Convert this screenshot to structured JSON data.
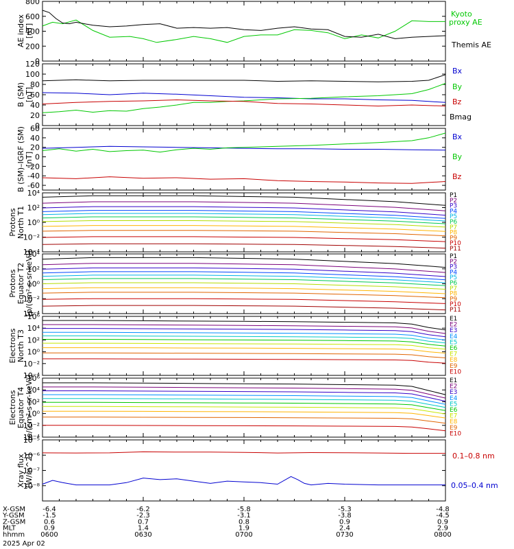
{
  "colors": {
    "black": "#000000",
    "green": "#00c800",
    "blue": "#0000d0",
    "red": "#c80000"
  },
  "p_colors": [
    "#000000",
    "#7a007a",
    "#3200c8",
    "#0048ff",
    "#00b4e6",
    "#00c850",
    "#b4dc00",
    "#ffb400",
    "#e06400",
    "#c80000",
    "#a00000"
  ],
  "e_colors": [
    "#000000",
    "#7a007a",
    "#3200c8",
    "#0090ff",
    "#00c8c8",
    "#00c800",
    "#c8e600",
    "#ffb400",
    "#e06400",
    "#c80000"
  ],
  "chart_data": [
    {
      "type": "line",
      "ylabel": "AE index [nT]",
      "ylim": [
        0,
        800
      ],
      "yticks": [
        "800",
        "600",
        "400",
        "200",
        "0"
      ],
      "grid": false,
      "legend_position": "right",
      "series": [
        {
          "name": "Kyoto proxy AE",
          "color": "green",
          "x_minutes": [
            0,
            3,
            6,
            10,
            15,
            20,
            26,
            30,
            34,
            40,
            45,
            50,
            55,
            60,
            65,
            70,
            75,
            80,
            85,
            90,
            95,
            100,
            105,
            110,
            115,
            120
          ],
          "values": [
            470,
            520,
            500,
            550,
            410,
            320,
            330,
            300,
            250,
            290,
            330,
            300,
            250,
            330,
            350,
            350,
            420,
            410,
            380,
            300,
            350,
            310,
            400,
            540,
            530,
            530
          ]
        },
        {
          "name": "Themis AE",
          "color": "black",
          "x_minutes": [
            0,
            2,
            4,
            6,
            8,
            10,
            15,
            20,
            25,
            30,
            35,
            40,
            45,
            50,
            55,
            60,
            65,
            70,
            75,
            80,
            85,
            90,
            95,
            100,
            105,
            110,
            115,
            120
          ],
          "values": [
            680,
            650,
            570,
            510,
            500,
            520,
            480,
            460,
            470,
            490,
            500,
            440,
            450,
            440,
            450,
            420,
            410,
            440,
            460,
            430,
            420,
            330,
            320,
            360,
            300,
            320,
            330,
            340
          ]
        }
      ]
    },
    {
      "type": "line",
      "ylabel": "B (SM) [nT]",
      "ylim": [
        0,
        120
      ],
      "yticks": [
        "120",
        "100",
        "80",
        "60",
        "40",
        "20",
        "0"
      ],
      "series": [
        {
          "name": "Bx",
          "color": "blue",
          "x_minutes": [
            0,
            10,
            20,
            30,
            40,
            50,
            60,
            70,
            80,
            90,
            100,
            110,
            115,
            120
          ],
          "values": [
            64,
            63,
            60,
            63,
            61,
            58,
            55,
            54,
            52,
            52,
            50,
            49,
            47,
            45
          ]
        },
        {
          "name": "By",
          "color": "green",
          "x_minutes": [
            0,
            5,
            10,
            15,
            20,
            25,
            30,
            35,
            40,
            45,
            50,
            55,
            60,
            70,
            80,
            90,
            100,
            110,
            115,
            120
          ],
          "values": [
            25,
            27,
            30,
            26,
            29,
            28,
            33,
            36,
            40,
            45,
            45,
            47,
            48,
            52,
            53,
            56,
            58,
            62,
            70,
            82
          ]
        },
        {
          "name": "Bz",
          "color": "red",
          "x_minutes": [
            0,
            10,
            20,
            30,
            40,
            50,
            60,
            70,
            80,
            90,
            100,
            110,
            120
          ],
          "values": [
            42,
            45,
            47,
            48,
            50,
            48,
            47,
            43,
            42,
            40,
            38,
            40,
            38
          ]
        },
        {
          "name": "Bmag",
          "color": "black",
          "x_minutes": [
            0,
            10,
            20,
            30,
            40,
            50,
            60,
            70,
            80,
            90,
            100,
            110,
            115,
            120
          ],
          "values": [
            87,
            89,
            87,
            88,
            88,
            88,
            88,
            86,
            87,
            86,
            85,
            86,
            88,
            99
          ]
        }
      ]
    },
    {
      "type": "line",
      "ylabel": "B (SM)-IGRF (SM) [nT]",
      "ylim": [
        -70,
        60
      ],
      "yticks": [
        "60",
        "40",
        "20",
        "0",
        "-20",
        "-40",
        "-60"
      ],
      "series": [
        {
          "name": "Bx",
          "color": "blue",
          "x_minutes": [
            0,
            10,
            20,
            30,
            40,
            50,
            60,
            70,
            80,
            90,
            100,
            110,
            120
          ],
          "values": [
            18,
            20,
            22,
            21,
            20,
            19,
            18,
            17,
            17,
            16,
            16,
            15,
            14
          ]
        },
        {
          "name": "By",
          "color": "green",
          "x_minutes": [
            0,
            5,
            10,
            15,
            20,
            25,
            30,
            35,
            40,
            45,
            50,
            55,
            60,
            70,
            80,
            90,
            100,
            110,
            115,
            120
          ],
          "values": [
            13,
            17,
            12,
            16,
            11,
            13,
            14,
            10,
            15,
            18,
            16,
            19,
            20,
            22,
            24,
            27,
            30,
            34,
            40,
            50
          ]
        },
        {
          "name": "Bz",
          "color": "red",
          "x_minutes": [
            0,
            10,
            20,
            30,
            40,
            50,
            60,
            70,
            80,
            90,
            100,
            110,
            120
          ],
          "values": [
            -44,
            -46,
            -42,
            -45,
            -44,
            -47,
            -46,
            -50,
            -52,
            -53,
            -55,
            -56,
            -52
          ]
        }
      ]
    },
    {
      "type": "line",
      "ylabel": "Protons North T1",
      "yscale": "log",
      "ylim": [
        0.0001,
        10000
      ],
      "yticks": [
        "10⁴",
        "10²",
        "10⁰",
        "10⁻²",
        "10⁻⁴"
      ],
      "legend": [
        "P1",
        "P2",
        "P3",
        "P4",
        "P5",
        "P6",
        "P7",
        "P8",
        "P9",
        "P10",
        "P11"
      ],
      "channel_start_log": [
        3.4,
        2.6,
        1.95,
        1.45,
        1.05,
        0.6,
        0.1,
        -0.55,
        -1.2,
        -2.05,
        -3.0
      ],
      "x_minutes": [
        0,
        15,
        30,
        45,
        60,
        75,
        90,
        105,
        120
      ],
      "channel_delta_log": [
        0,
        0.2,
        0.2,
        0.2,
        0.1,
        0,
        -0.3,
        -0.6,
        -1.1
      ]
    },
    {
      "type": "line",
      "ylabel": "Protons Equator T2 [p/(cm²-s-sr-keV)]",
      "yscale": "log",
      "ylim": [
        0.0001,
        10000
      ],
      "yticks": [
        "10⁴",
        "10²",
        "10⁰",
        "10⁻²",
        "10⁻⁴"
      ],
      "legend": [
        "P1",
        "P2",
        "P3",
        "P4",
        "P5",
        "P6",
        "P7",
        "P8",
        "P9",
        "P10",
        "P11"
      ],
      "channel_start_log": [
        3.3,
        2.55,
        1.95,
        1.45,
        1.0,
        0.55,
        0.0,
        -0.65,
        -1.25,
        -2.1,
        -3.0
      ],
      "x_minutes": [
        0,
        15,
        30,
        45,
        60,
        75,
        90,
        105,
        120
      ],
      "channel_delta_log": [
        0,
        0.2,
        0.2,
        0.2,
        0.1,
        0,
        -0.3,
        -0.6,
        -1.1
      ]
    },
    {
      "type": "line",
      "ylabel": "Electrons North T3",
      "yscale": "log",
      "ylim": [
        0.0001,
        1000000
      ],
      "yticks": [
        "10⁶",
        "10⁴",
        "10²",
        "10⁰",
        "10⁻²",
        "10⁻⁴"
      ],
      "legend": [
        "E1",
        "E2",
        "E3",
        "E4",
        "E5",
        "E6",
        "E7",
        "E8",
        "E9",
        "E10"
      ],
      "channel_start_log": [
        5.3,
        4.6,
        3.95,
        3.3,
        2.7,
        2.1,
        1.45,
        0.7,
        -0.2,
        -1.2
      ],
      "x_minutes": [
        0,
        15,
        30,
        45,
        60,
        75,
        90,
        105,
        110,
        115,
        120
      ],
      "channel_delta_log": [
        0,
        0,
        -0.05,
        -0.1,
        -0.15,
        -0.2,
        -0.3,
        -0.4,
        -0.6,
        -1.2,
        -1.6
      ]
    },
    {
      "type": "line",
      "ylabel": "Electrons Equator T4 [e/(cm²-s-sr-keV)]",
      "yscale": "log",
      "ylim": [
        0.0001,
        1000000
      ],
      "yticks": [
        "10⁶",
        "10⁴",
        "10²",
        "10⁰",
        "10⁻²",
        "10⁻⁴"
      ],
      "legend": [
        "E1",
        "E2",
        "E3",
        "E4",
        "E5",
        "E6",
        "E7",
        "E8",
        "E9",
        "E10"
      ],
      "channel_start_log": [
        5.2,
        4.5,
        3.85,
        3.2,
        2.55,
        1.9,
        1.2,
        0.4,
        -0.6,
        -2.0
      ],
      "x_minutes": [
        0,
        15,
        30,
        45,
        60,
        75,
        90,
        105,
        110,
        115,
        120
      ],
      "channel_delta_log": [
        0,
        0,
        -0.05,
        -0.1,
        -0.15,
        -0.2,
        -0.3,
        -0.4,
        -0.6,
        -1.3,
        -2.0
      ]
    },
    {
      "type": "line",
      "ylabel": "Xray flux [W/m^2]",
      "yscale": "log",
      "ylim": [
        1e-09,
        1e-05
      ],
      "yticks": [
        "10⁻⁵",
        "10⁻⁶",
        "10⁻⁷",
        "10⁻⁸"
      ],
      "series": [
        {
          "name": "0.1–0.8 nm",
          "color": "red",
          "x_minutes": [
            0,
            10,
            20,
            30,
            40,
            50,
            60,
            70,
            80,
            90,
            100,
            110,
            120
          ],
          "values_log": [
            -5.85,
            -5.86,
            -5.85,
            -5.78,
            -5.8,
            -5.8,
            -5.82,
            -5.86,
            -5.83,
            -5.84,
            -5.86,
            -5.88,
            -5.88
          ]
        },
        {
          "name": "0.05–0.4 nm",
          "color": "blue",
          "x_minutes": [
            0,
            3,
            6,
            10,
            15,
            20,
            25,
            30,
            35,
            40,
            45,
            50,
            55,
            60,
            65,
            70,
            74,
            76,
            78,
            80,
            85,
            90,
            100,
            110,
            120
          ],
          "values_log": [
            -7.9,
            -7.65,
            -7.8,
            -7.95,
            -7.95,
            -7.95,
            -7.8,
            -7.5,
            -7.6,
            -7.55,
            -7.7,
            -7.85,
            -7.7,
            -7.75,
            -7.8,
            -7.9,
            -7.4,
            -7.6,
            -7.85,
            -7.95,
            -7.85,
            -7.9,
            -7.95,
            -7.95,
            -7.95
          ]
        }
      ]
    }
  ],
  "labels": {
    "ae_title": "AE index",
    "ae_unit": "[nT]",
    "b_title": "B (SM)",
    "b_unit": "[nT]",
    "bd_title": "B (SM)–IGRF (SM)",
    "bd_unit": "[nT]",
    "p1_title": "Protons",
    "p1_sub": "North T1",
    "p2_title": "Protons",
    "p2_sub": "Equator T2",
    "p2_unit": "[p/(cm²-s-sr-keV)]",
    "e1_title": "Electrons",
    "e1_sub": "North T3",
    "e2_title": "Electrons",
    "e2_sub": "Equator T4",
    "e2_unit": "[e/(cm²-s-sr-keV)]",
    "x_title": "Xray flux",
    "x_unit": "[W/m^2]",
    "kyoto1": "Kyoto",
    "kyoto2": "proxy AE",
    "themis": "Themis AE",
    "bx": "Bx",
    "by": "By",
    "bz": "Bz",
    "bmag": "Bmag",
    "xray_long": "0.1–0.8 nm",
    "xray_short": "0.05–0.4 nm"
  },
  "footer": {
    "row_labels": [
      "X-GSM",
      "Y-GSM",
      "Z-GSM",
      "MLT",
      "hhmm"
    ],
    "date": "2025 Apr 02",
    "columns": [
      [
        "-6.4",
        "-1.5",
        "0.6",
        "0.9",
        "0600"
      ],
      [
        "-6.2",
        "-2.3",
        "0.7",
        "1.4",
        "0630"
      ],
      [
        "-5.8",
        "-3.1",
        "0.8",
        "1.9",
        "0700"
      ],
      [
        "-5.3",
        "-3.8",
        "0.9",
        "2.4",
        "0730"
      ],
      [
        "-4.8",
        "-4.5",
        "0.9",
        "2.9",
        "0800"
      ]
    ]
  }
}
